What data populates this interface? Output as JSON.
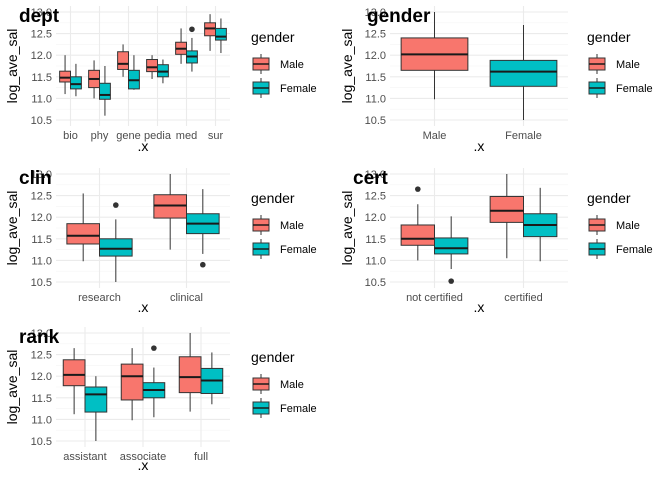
{
  "colors": {
    "Male": "#F8766D",
    "Female": "#00BFC4",
    "grid_major": "#ebebeb",
    "grid_minor": "#f5f5f5",
    "outline": "#333333"
  },
  "legend": {
    "title": "gender",
    "items": [
      "Male",
      "Female"
    ]
  },
  "chart_data": [
    {
      "type": "box",
      "title": "dept",
      "xlabel": ".x",
      "ylabel": "log_ave_sal",
      "ylim": [
        10.4,
        13.0
      ],
      "yticks": [
        "10.5",
        "11.0",
        "11.5",
        "12.0",
        "12.5",
        "13.0"
      ],
      "legend_placement": "right",
      "grid": true,
      "categories": [
        "bio",
        "phy",
        "gene",
        "pedia",
        "med",
        "sur"
      ],
      "series": [
        {
          "name": "Male",
          "boxes": [
            {
              "min": 11.1,
              "q1": 11.38,
              "median": 11.48,
              "q3": 11.63,
              "max": 12.0,
              "outliers": []
            },
            {
              "min": 11.0,
              "q1": 11.25,
              "median": 11.45,
              "q3": 11.65,
              "max": 11.88,
              "outliers": []
            },
            {
              "min": 11.5,
              "q1": 11.67,
              "median": 11.8,
              "q3": 12.08,
              "max": 12.25,
              "outliers": []
            },
            {
              "min": 11.45,
              "q1": 11.62,
              "median": 11.72,
              "q3": 11.9,
              "max": 12.0,
              "outliers": []
            },
            {
              "min": 11.8,
              "q1": 12.02,
              "median": 12.15,
              "q3": 12.3,
              "max": 12.62,
              "outliers": []
            },
            {
              "min": 12.1,
              "q1": 12.45,
              "median": 12.62,
              "q3": 12.75,
              "max": 12.95,
              "outliers": []
            }
          ]
        },
        {
          "name": "Female",
          "boxes": [
            {
              "min": 11.05,
              "q1": 11.22,
              "median": 11.33,
              "q3": 11.5,
              "max": 11.8,
              "outliers": []
            },
            {
              "min": 10.6,
              "q1": 10.98,
              "median": 11.08,
              "q3": 11.35,
              "max": 11.75,
              "outliers": []
            },
            {
              "min": 11.2,
              "q1": 11.22,
              "median": 11.42,
              "q3": 11.65,
              "max": 12.0,
              "outliers": []
            },
            {
              "min": 11.35,
              "q1": 11.5,
              "median": 11.62,
              "q3": 11.78,
              "max": 11.9,
              "outliers": []
            },
            {
              "min": 11.62,
              "q1": 11.82,
              "median": 11.97,
              "q3": 12.1,
              "max": 12.4,
              "outliers": [
                12.6
              ]
            },
            {
              "min": 12.05,
              "q1": 12.35,
              "median": 12.43,
              "q3": 12.62,
              "max": 12.85,
              "outliers": []
            }
          ]
        }
      ]
    },
    {
      "type": "box",
      "title": "gender",
      "xlabel": ".x",
      "ylabel": "log_ave_sal",
      "ylim": [
        10.4,
        13.0
      ],
      "yticks": [
        "10.5",
        "11.0",
        "11.5",
        "12.0",
        "12.5",
        "13.0"
      ],
      "legend_placement": "right",
      "grid": true,
      "categories": [
        "Male",
        "Female"
      ],
      "series": [
        {
          "name": "Male",
          "boxes": [
            {
              "min": 10.98,
              "q1": 11.65,
              "median": 12.02,
              "q3": 12.4,
              "max": 13.0,
              "outliers": []
            },
            null
          ]
        },
        {
          "name": "Female",
          "boxes": [
            null,
            {
              "min": 10.5,
              "q1": 11.28,
              "median": 11.62,
              "q3": 11.88,
              "max": 12.7,
              "outliers": []
            }
          ]
        }
      ]
    },
    {
      "type": "box",
      "title": "clin",
      "xlabel": ".x",
      "ylabel": "log_ave_sal",
      "ylim": [
        10.4,
        13.0
      ],
      "yticks": [
        "10.5",
        "11.0",
        "11.5",
        "12.0",
        "12.5",
        "13.0"
      ],
      "legend_placement": "right",
      "grid": true,
      "categories": [
        "research",
        "clinical"
      ],
      "series": [
        {
          "name": "Male",
          "boxes": [
            {
              "min": 10.98,
              "q1": 11.38,
              "median": 11.57,
              "q3": 11.85,
              "max": 12.55,
              "outliers": []
            },
            {
              "min": 11.25,
              "q1": 11.98,
              "median": 12.27,
              "q3": 12.52,
              "max": 13.0,
              "outliers": []
            }
          ]
        },
        {
          "name": "Female",
          "boxes": [
            {
              "min": 10.5,
              "q1": 11.1,
              "median": 11.27,
              "q3": 11.5,
              "max": 11.95,
              "outliers": [
                12.28
              ]
            },
            {
              "min": 11.15,
              "q1": 11.62,
              "median": 11.85,
              "q3": 12.08,
              "max": 12.65,
              "outliers": [
                10.9
              ]
            }
          ]
        }
      ]
    },
    {
      "type": "box",
      "title": "cert",
      "xlabel": ".x",
      "ylabel": "log_ave_sal",
      "ylim": [
        10.4,
        13.0
      ],
      "yticks": [
        "10.5",
        "11.0",
        "11.5",
        "12.0",
        "12.5",
        "13.0"
      ],
      "legend_placement": "right",
      "grid": true,
      "categories": [
        "not certified",
        "certified"
      ],
      "series": [
        {
          "name": "Male",
          "boxes": [
            {
              "min": 11.0,
              "q1": 11.35,
              "median": 11.5,
              "q3": 11.82,
              "max": 12.3,
              "outliers": [
                12.65
              ]
            },
            {
              "min": 11.05,
              "q1": 11.88,
              "median": 12.15,
              "q3": 12.48,
              "max": 13.0,
              "outliers": []
            }
          ]
        },
        {
          "name": "Female",
          "boxes": [
            {
              "min": 10.8,
              "q1": 11.15,
              "median": 11.28,
              "q3": 11.52,
              "max": 12.02,
              "outliers": [
                10.52
              ]
            },
            {
              "min": 10.98,
              "q1": 11.55,
              "median": 11.82,
              "q3": 12.08,
              "max": 12.68,
              "outliers": []
            }
          ]
        }
      ]
    },
    {
      "type": "box",
      "title": "rank",
      "xlabel": ".x",
      "ylabel": "log_ave_sal",
      "ylim": [
        10.4,
        13.0
      ],
      "yticks": [
        "10.5",
        "11.0",
        "11.5",
        "12.0",
        "12.5",
        "13.0"
      ],
      "legend_placement": "right",
      "grid": true,
      "categories": [
        "assistant",
        "associate",
        "full"
      ],
      "series": [
        {
          "name": "Male",
          "boxes": [
            {
              "min": 11.12,
              "q1": 11.78,
              "median": 12.03,
              "q3": 12.38,
              "max": 12.65,
              "outliers": []
            },
            {
              "min": 10.98,
              "q1": 11.45,
              "median": 12.0,
              "q3": 12.28,
              "max": 12.65,
              "outliers": []
            },
            {
              "min": 11.18,
              "q1": 11.62,
              "median": 11.98,
              "q3": 12.45,
              "max": 13.0,
              "outliers": []
            }
          ]
        },
        {
          "name": "Female",
          "boxes": [
            {
              "min": 10.5,
              "q1": 11.17,
              "median": 11.58,
              "q3": 11.75,
              "max": 12.0,
              "outliers": []
            },
            {
              "min": 11.05,
              "q1": 11.5,
              "median": 11.68,
              "q3": 11.85,
              "max": 12.2,
              "outliers": [
                12.65
              ]
            },
            {
              "min": 11.35,
              "q1": 11.6,
              "median": 11.9,
              "q3": 12.18,
              "max": 12.55,
              "outliers": []
            }
          ]
        }
      ]
    }
  ]
}
